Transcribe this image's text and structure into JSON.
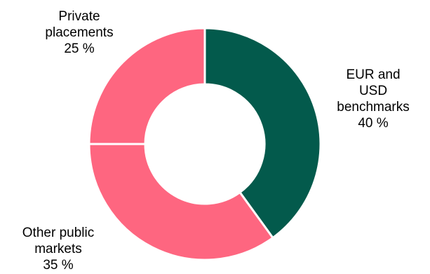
{
  "chart_data": {
    "type": "pie",
    "variant": "donut",
    "slices": [
      {
        "label": "EUR and USD benchmarks",
        "label_lines": [
          "EUR and",
          "USD",
          "benchmarks"
        ],
        "value": 40,
        "value_text": "40 %",
        "color": "#035a4c"
      },
      {
        "label": "Other public markets",
        "label_lines": [
          "Other public",
          "markets"
        ],
        "value": 35,
        "value_text": "35 %",
        "color": "#fe6680"
      },
      {
        "label": "Private placements",
        "label_lines": [
          "Private",
          "placements"
        ],
        "value": 25,
        "value_text": "25 %",
        "color": "#fe6680"
      }
    ],
    "start_angle_deg": 0,
    "direction": "clockwise",
    "separator_color": "#ffffff"
  }
}
